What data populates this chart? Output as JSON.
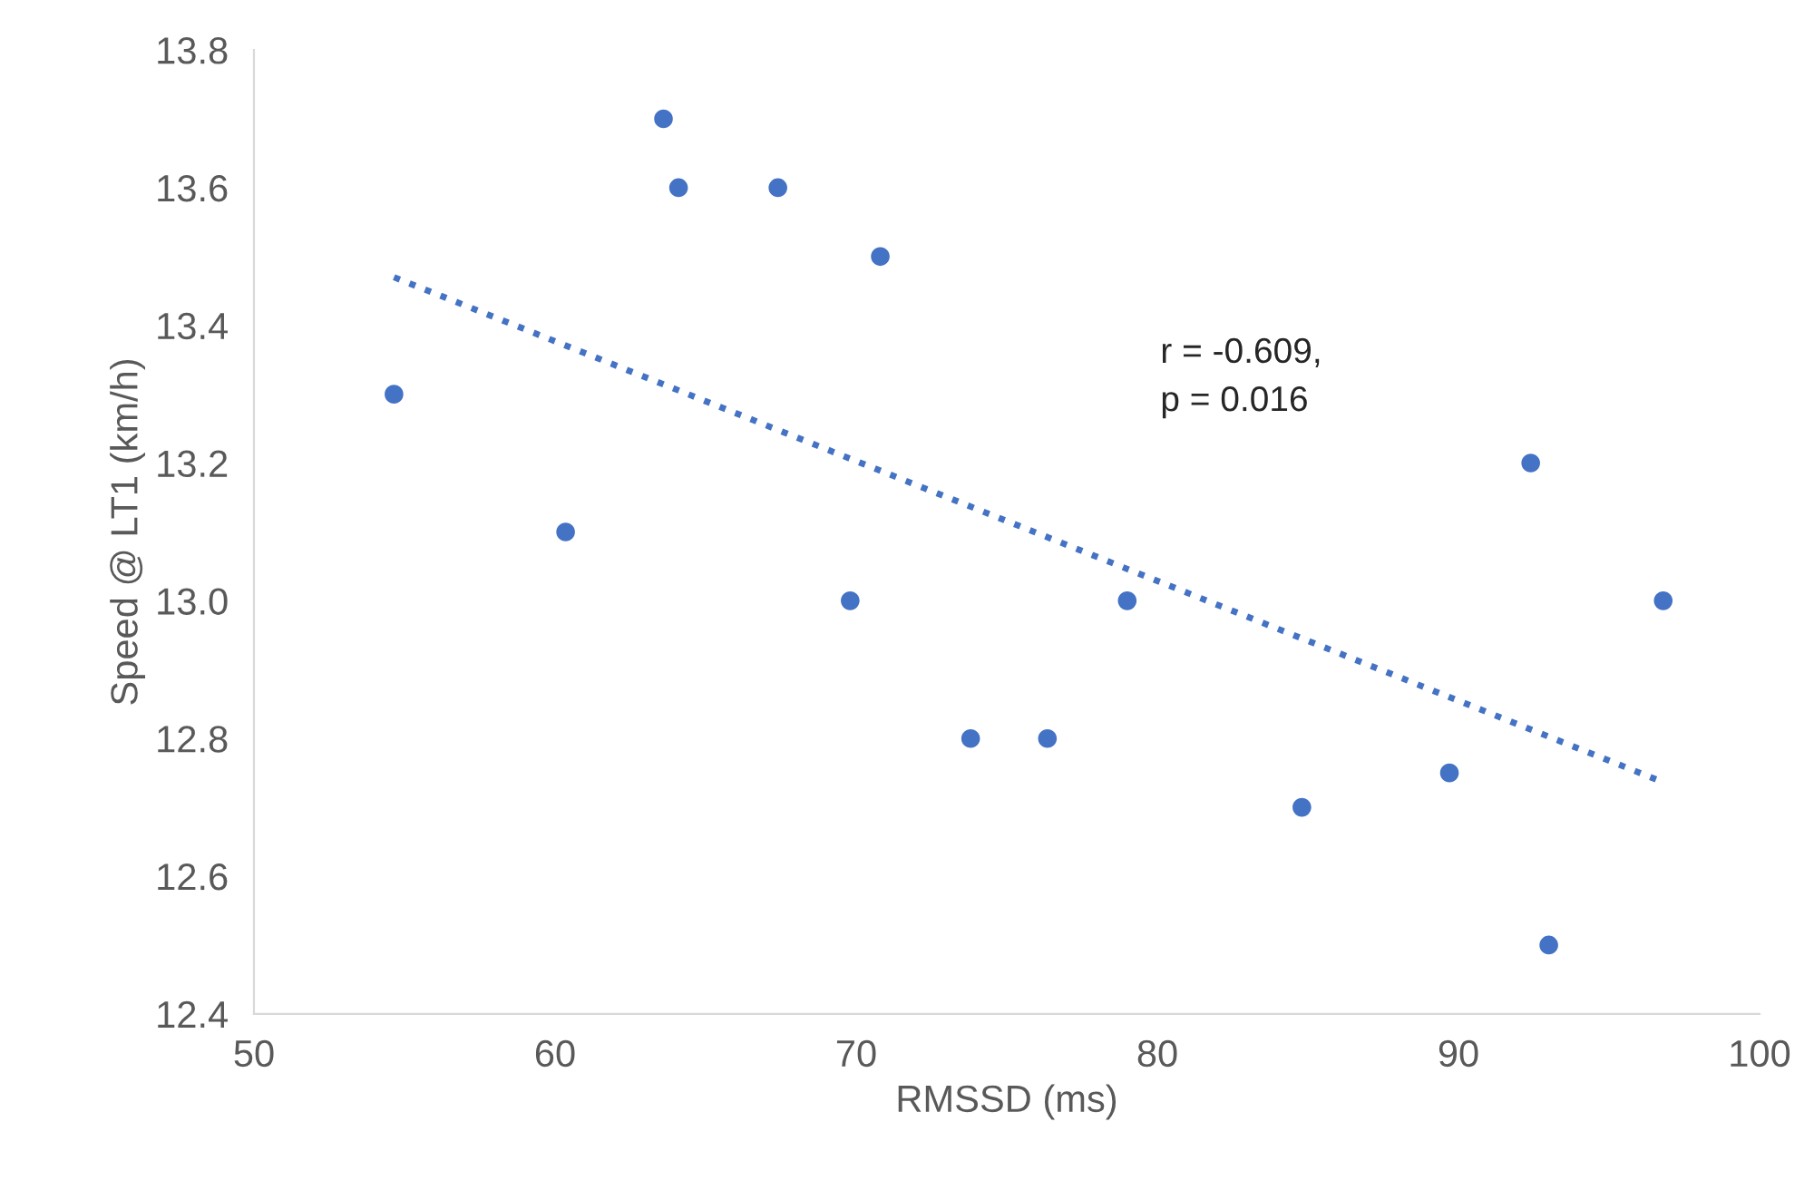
{
  "chart_data": {
    "type": "scatter",
    "xlabel": "RMSSD (ms)",
    "ylabel": "Speed @ LT1 (km/h)",
    "annotations": [
      "r = -0.609,\np = 0.016"
    ],
    "xlim": [
      50,
      100
    ],
    "xticks": [
      50,
      60,
      70,
      80,
      90,
      100
    ],
    "ylim": [
      12.4,
      13.8
    ],
    "yticks": [
      {
        "value": 12.4,
        "label": "12.4"
      },
      {
        "value": 12.6,
        "label": "12.6"
      },
      {
        "value": 12.8,
        "label": "12.8"
      },
      {
        "value": 13.0,
        "label": "13.0"
      },
      {
        "value": 13.2,
        "label": "13.2"
      },
      {
        "value": 13.4,
        "label": "13.4"
      },
      {
        "value": 13.6,
        "label": "13.6"
      },
      {
        "value": 13.8,
        "label": "13.8"
      }
    ],
    "grid": false,
    "legend": false,
    "series": [
      {
        "color": "#4472c4",
        "marker": "circle",
        "x": [
          54.65,
          60.35,
          63.6,
          64.1,
          67.4,
          69.8,
          70.8,
          73.8,
          76.35,
          79.0,
          84.8,
          89.7,
          92.4,
          93.0,
          96.8
        ],
        "values": [
          13.3,
          13.1,
          13.7,
          13.6,
          13.6,
          13.0,
          13.5,
          12.8,
          12.8,
          13.0,
          12.7,
          12.75,
          13.2,
          12.5,
          13.0
        ]
      },
      {
        "type": "line",
        "color": "#4472c4",
        "line_style": "dotted",
        "marker": "none",
        "x": [
          54.65,
          96.6
        ],
        "values": [
          13.47,
          12.74
        ]
      }
    ]
  }
}
